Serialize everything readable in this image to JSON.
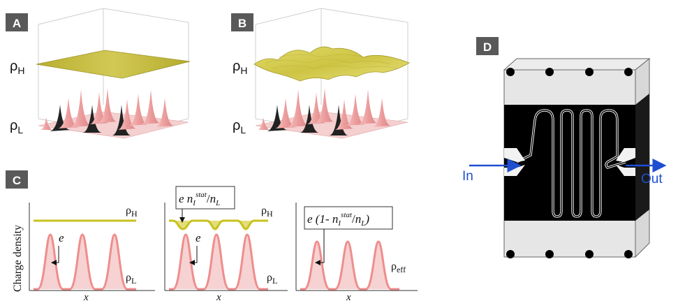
{
  "panels": {
    "a": {
      "label": "A",
      "rho_h": "ρ",
      "rho_h_sub": "H",
      "rho_l": "ρ",
      "rho_l_sub": "L"
    },
    "b": {
      "label": "B",
      "rho_h": "ρ",
      "rho_h_sub": "H",
      "rho_l": "ρ",
      "rho_l_sub": "L"
    },
    "c": {
      "label": "C",
      "ylabel": "Charge density",
      "xlabel": "x",
      "plot1": {
        "rho_h": "ρ",
        "rho_h_sub": "H",
        "rho_l": "ρ",
        "rho_l_sub": "L",
        "e": "e"
      },
      "plot2": {
        "rho_h": "ρ",
        "rho_h_sub": "H",
        "rho_l": "ρ",
        "rho_l_sub": "L",
        "e": "e",
        "box_e": "e",
        "box_n": "n",
        "box_n_sub": "I",
        "box_n_sup": "stat",
        "box_slash": "/",
        "box_nl": "n",
        "box_nl_sub": "L"
      },
      "plot3": {
        "rho_eff": "ρ",
        "rho_eff_sub": "eff",
        "box_e": "e (1- ",
        "box_n": "n",
        "box_n_sub": "I",
        "box_n_sup": "stat",
        "box_slash": "/",
        "box_nl": "n",
        "box_nl_sub": "L",
        "box_close": ")"
      }
    },
    "d": {
      "label": "D",
      "in": "In",
      "out": "Out"
    }
  },
  "colors": {
    "label_bg": "#595959",
    "sheet": "#c9c04a",
    "peak": "#f0a8a8",
    "peak_dark": "#222222",
    "curve": "#ef8d8d",
    "line_h": "#c8c21e",
    "arrow_blue": "#1f4fd0"
  }
}
